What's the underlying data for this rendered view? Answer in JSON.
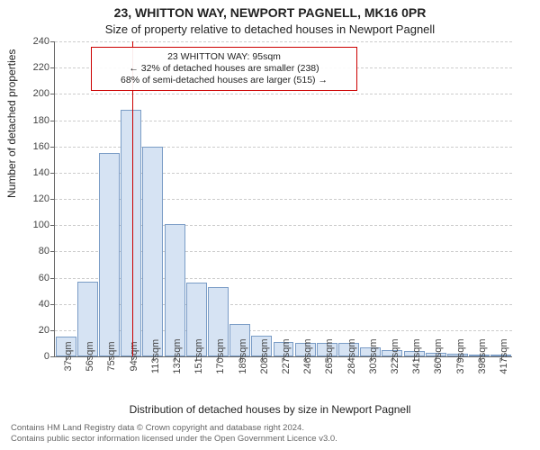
{
  "chart": {
    "type": "histogram",
    "title_main": "23, WHITTON WAY, NEWPORT PAGNELL, MK16 0PR",
    "title_sub": "Size of property relative to detached houses in Newport Pagnell",
    "ylabel": "Number of detached properties",
    "xlabel": "Distribution of detached houses by size in Newport Pagnell",
    "background_color": "#ffffff",
    "grid_color": "#cccccc",
    "axis_color": "#666666",
    "bar_fill": "#d6e3f3",
    "bar_stroke": "#7a9cc6",
    "bar_width": 0.95,
    "ylim": [
      0,
      240
    ],
    "ytick_step": 20,
    "yticks": [
      0,
      20,
      40,
      60,
      80,
      100,
      120,
      140,
      160,
      180,
      200,
      220,
      240
    ],
    "x_categories": [
      "37sqm",
      "56sqm",
      "75sqm",
      "94sqm",
      "113sqm",
      "132sqm",
      "151sqm",
      "170sqm",
      "189sqm",
      "208sqm",
      "227sqm",
      "246sqm",
      "265sqm",
      "284sqm",
      "303sqm",
      "322sqm",
      "341sqm",
      "360sqm",
      "379sqm",
      "398sqm",
      "417sqm"
    ],
    "values": [
      15,
      57,
      155,
      188,
      160,
      101,
      56,
      53,
      25,
      16,
      11,
      10,
      10,
      10,
      7,
      5,
      4,
      3,
      2,
      1,
      1
    ],
    "reference_line": {
      "x_value_sqm": 95,
      "color": "#cc0000"
    },
    "annotation": {
      "line1": "23 WHITTON WAY: 95sqm",
      "line2": "← 32% of detached houses are smaller (238)",
      "line3": "68% of semi-detached houses are larger (515) →",
      "border_color": "#cc0000"
    },
    "title_fontsize": 14,
    "subtitle_fontsize": 13,
    "label_fontsize": 12,
    "tick_fontsize": 11,
    "annot_fontsize": 10.5
  },
  "attribution": {
    "line1": "Contains HM Land Registry data © Crown copyright and database right 2024.",
    "line2": "Contains public sector information licensed under the Open Government Licence v3.0."
  }
}
